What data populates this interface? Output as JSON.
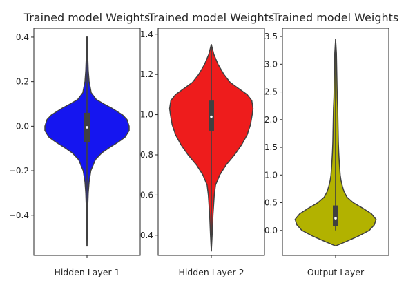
{
  "chart_data": [
    {
      "type": "violin",
      "title": "Trained model Weights",
      "category": "Hidden Layer 1",
      "color": "#1515f0",
      "ylim": [
        -0.58,
        0.44
      ],
      "yticks": [
        0.4,
        0.2,
        0.0,
        -0.2,
        -0.4
      ],
      "ytick_labels": [
        "0.4",
        "0.2",
        "0.0",
        "−0.2",
        "−0.4"
      ],
      "distribution": {
        "min": -0.54,
        "q1": -0.07,
        "median": -0.005,
        "q3": 0.06,
        "max": 0.4,
        "profile": [
          [
            -0.54,
            0.0
          ],
          [
            -0.45,
            0.01
          ],
          [
            -0.35,
            0.02
          ],
          [
            -0.3,
            0.03
          ],
          [
            -0.25,
            0.05
          ],
          [
            -0.2,
            0.09
          ],
          [
            -0.15,
            0.2
          ],
          [
            -0.12,
            0.35
          ],
          [
            -0.1,
            0.5
          ],
          [
            -0.07,
            0.75
          ],
          [
            -0.05,
            0.9
          ],
          [
            -0.02,
            1.0
          ],
          [
            0.0,
            1.0
          ],
          [
            0.03,
            0.95
          ],
          [
            0.05,
            0.85
          ],
          [
            0.08,
            0.6
          ],
          [
            0.1,
            0.4
          ],
          [
            0.12,
            0.22
          ],
          [
            0.15,
            0.1
          ],
          [
            0.2,
            0.05
          ],
          [
            0.25,
            0.03
          ],
          [
            0.3,
            0.02
          ],
          [
            0.35,
            0.015
          ],
          [
            0.4,
            0.005
          ]
        ]
      }
    },
    {
      "type": "violin",
      "title": "Trained model Weights",
      "category": "Hidden Layer 2",
      "color": "#ee1c1c",
      "ylim": [
        0.3,
        1.43
      ],
      "yticks": [
        1.4,
        1.2,
        1.0,
        0.8,
        0.6,
        0.4
      ],
      "ytick_labels": [
        "1.4",
        "1.2",
        "1.0",
        "0.8",
        "0.6",
        "0.4"
      ],
      "distribution": {
        "min": 0.32,
        "q1": 0.92,
        "median": 0.99,
        "q3": 1.07,
        "max": 1.35,
        "profile": [
          [
            0.32,
            0.0
          ],
          [
            0.4,
            0.02
          ],
          [
            0.5,
            0.04
          ],
          [
            0.6,
            0.07
          ],
          [
            0.65,
            0.1
          ],
          [
            0.7,
            0.2
          ],
          [
            0.75,
            0.35
          ],
          [
            0.8,
            0.55
          ],
          [
            0.85,
            0.72
          ],
          [
            0.9,
            0.85
          ],
          [
            0.95,
            0.93
          ],
          [
            1.0,
            0.97
          ],
          [
            1.03,
            0.99
          ],
          [
            1.07,
            0.96
          ],
          [
            1.1,
            0.85
          ],
          [
            1.13,
            0.65
          ],
          [
            1.16,
            0.45
          ],
          [
            1.2,
            0.3
          ],
          [
            1.25,
            0.16
          ],
          [
            1.3,
            0.06
          ],
          [
            1.35,
            0.0
          ]
        ]
      }
    },
    {
      "type": "violin",
      "title": "Trained model Weights",
      "category": "Output Layer",
      "color": "#b2b200",
      "ylim": [
        -0.45,
        3.65
      ],
      "yticks": [
        3.5,
        3.0,
        2.5,
        2.0,
        1.5,
        1.0,
        0.5,
        0.0
      ],
      "ytick_labels": [
        "3.5",
        "3.0",
        "2.5",
        "2.0",
        "1.5",
        "1.0",
        "0.5",
        "0.0"
      ],
      "distribution": {
        "min": 0.0,
        "q1": 0.08,
        "median": 0.22,
        "q3": 0.45,
        "max": 3.45,
        "profile": [
          [
            -0.28,
            0.0
          ],
          [
            -0.2,
            0.25
          ],
          [
            -0.1,
            0.55
          ],
          [
            0.0,
            0.8
          ],
          [
            0.1,
            0.92
          ],
          [
            0.2,
            0.96
          ],
          [
            0.3,
            0.85
          ],
          [
            0.4,
            0.65
          ],
          [
            0.5,
            0.42
          ],
          [
            0.6,
            0.27
          ],
          [
            0.7,
            0.2
          ],
          [
            0.8,
            0.16
          ],
          [
            0.9,
            0.13
          ],
          [
            1.0,
            0.11
          ],
          [
            1.2,
            0.09
          ],
          [
            1.4,
            0.075
          ],
          [
            1.6,
            0.065
          ],
          [
            1.8,
            0.06
          ],
          [
            2.0,
            0.055
          ],
          [
            2.2,
            0.05
          ],
          [
            2.4,
            0.04
          ],
          [
            2.6,
            0.035
          ],
          [
            2.8,
            0.03
          ],
          [
            3.0,
            0.025
          ],
          [
            3.2,
            0.02
          ],
          [
            3.45,
            0.0
          ]
        ]
      }
    }
  ]
}
